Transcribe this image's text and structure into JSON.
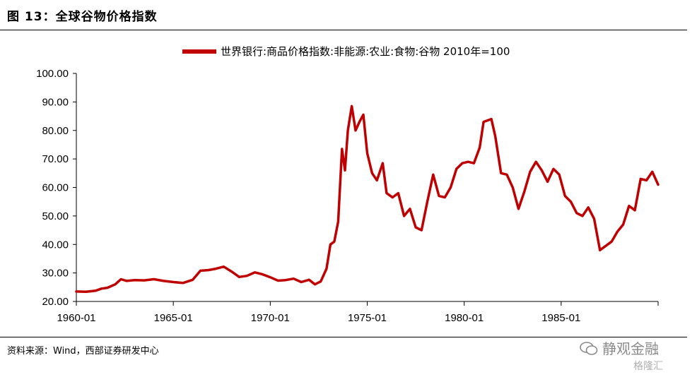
{
  "figure": {
    "title": "图 13：全球谷物价格指数",
    "source": "资料来源：Wind，西部证券研发中心",
    "watermark": "静观金融",
    "badge": "格隆汇"
  },
  "chart_data": {
    "type": "line",
    "title": "",
    "xlabel": "",
    "ylabel": "",
    "ylim": [
      20,
      100
    ],
    "yticks": [
      "20.00",
      "30.00",
      "40.00",
      "50.00",
      "60.00",
      "70.00",
      "80.00",
      "90.00",
      "100.00"
    ],
    "xticks": [
      "1960-01",
      "1965-01",
      "1970-01",
      "1975-01",
      "1980-01",
      "1985-01"
    ],
    "xlim": [
      1960.0,
      1990.0
    ],
    "grid": false,
    "legend": "top",
    "series": [
      {
        "name": "世界银行:商品价格指数:非能源:农业:食物:谷物 2010年=100",
        "color": "#c00000",
        "x": [
          1960.0,
          1960.5,
          1961.0,
          1961.3,
          1961.6,
          1962.0,
          1962.3,
          1962.6,
          1963.0,
          1963.5,
          1964.0,
          1964.5,
          1965.0,
          1965.5,
          1966.0,
          1966.4,
          1966.8,
          1967.2,
          1967.6,
          1968.0,
          1968.4,
          1968.8,
          1969.2,
          1969.6,
          1970.0,
          1970.4,
          1970.8,
          1971.2,
          1971.6,
          1972.0,
          1972.3,
          1972.6,
          1972.9,
          1973.1,
          1973.3,
          1973.5,
          1973.7,
          1973.85,
          1974.0,
          1974.2,
          1974.4,
          1974.6,
          1974.8,
          1975.0,
          1975.25,
          1975.5,
          1975.8,
          1976.0,
          1976.3,
          1976.6,
          1976.9,
          1977.2,
          1977.5,
          1977.8,
          1978.1,
          1978.4,
          1978.7,
          1979.0,
          1979.3,
          1979.6,
          1979.9,
          1980.2,
          1980.5,
          1980.8,
          1981.0,
          1981.2,
          1981.4,
          1981.6,
          1981.9,
          1982.2,
          1982.5,
          1982.8,
          1983.1,
          1983.4,
          1983.7,
          1984.0,
          1984.3,
          1984.6,
          1984.9,
          1985.2,
          1985.5,
          1985.8,
          1986.1,
          1986.4,
          1986.7,
          1987.0,
          1987.3,
          1987.6,
          1987.9,
          1988.2,
          1988.5,
          1988.8,
          1989.1,
          1989.4,
          1989.7,
          1990.0
        ],
        "values": [
          23.5,
          23.4,
          23.8,
          24.5,
          24.8,
          26.0,
          27.8,
          27.2,
          27.5,
          27.4,
          27.8,
          27.2,
          26.8,
          26.5,
          27.6,
          30.8,
          31.0,
          31.5,
          32.2,
          30.5,
          28.6,
          29.0,
          30.2,
          29.5,
          28.5,
          27.3,
          27.5,
          28.0,
          26.8,
          27.6,
          26.0,
          27.0,
          31.5,
          40.0,
          41.0,
          48.0,
          73.5,
          66.0,
          80.0,
          88.5,
          80.0,
          83.0,
          85.5,
          72.0,
          65.0,
          62.5,
          68.5,
          58.0,
          56.5,
          58.0,
          50.0,
          52.5,
          46.0,
          45.0,
          55.0,
          64.5,
          57.0,
          56.5,
          60.0,
          66.5,
          68.5,
          69.0,
          68.5,
          74.0,
          83.0,
          83.5,
          84.0,
          78.0,
          65.0,
          64.5,
          60.0,
          52.5,
          58.5,
          65.5,
          69.0,
          66.0,
          62.0,
          66.5,
          64.5,
          57.0,
          55.0,
          51.0,
          50.0,
          53.0,
          49.0,
          38.0,
          39.5,
          41.0,
          44.5,
          47.0,
          53.5,
          52.0,
          63.0,
          62.5,
          65.5,
          61.0
        ]
      }
    ]
  }
}
